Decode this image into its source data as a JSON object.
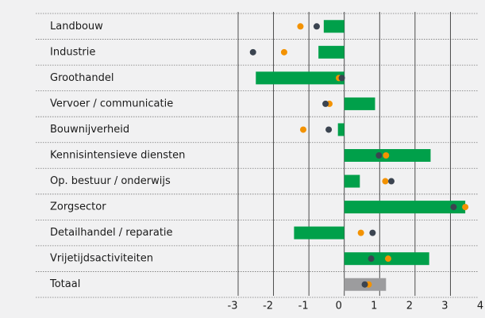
{
  "chart_data": {
    "type": "bar",
    "categories": [
      "Landbouw",
      "Industrie",
      "Groothandel",
      "Vervoer / communicatie",
      "Bouwnijverheid",
      "Kennisintensieve diensten",
      "Op. bestuur / onderwijs",
      "Zorgsector",
      "Detailhandel / reparatie",
      "Vrijetijdsactiviteiten",
      "Totaal"
    ],
    "orientation": "horizontal",
    "series": [
      {
        "values": [
          -0.58,
          -0.73,
          -2.5,
          0.87,
          -0.18,
          2.44,
          0.44,
          3.42,
          -1.42,
          2.4,
          1.18
        ],
        "colors": [
          "#00a04a",
          "#00a04a",
          "#00a04a",
          "#00a04a",
          "#00a04a",
          "#00a04a",
          "#00a04a",
          "#00a04a",
          "#00a04a",
          "#00a04a",
          "#9c9c9e"
        ]
      },
      {
        "color": "#f39200",
        "values": [
          -1.24,
          -1.7,
          -0.15,
          -0.42,
          -1.16,
          1.18,
          1.16,
          3.42,
          0.47,
          1.24,
          0.69
        ]
      },
      {
        "color": "#3b4450",
        "values": [
          -0.78,
          -2.58,
          -0.07,
          -0.53,
          -0.44,
          0.98,
          1.33,
          3.09,
          0.8,
          0.76,
          0.58
        ]
      }
    ],
    "xlim": [
      -3,
      4
    ],
    "xticks": [
      -3,
      -2,
      -1,
      0,
      1,
      2,
      3,
      4
    ],
    "grid": true
  }
}
